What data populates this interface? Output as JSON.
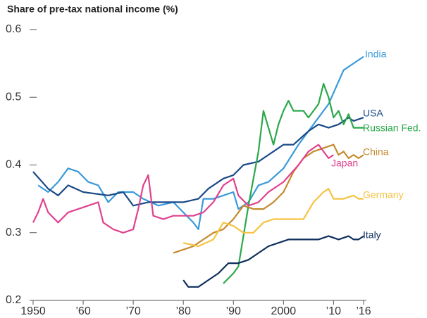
{
  "chart_data": {
    "type": "line",
    "title": "Share of pre-tax national income (%)",
    "xlim": [
      1950,
      2016
    ],
    "xticks": [
      1950,
      {
        "value": 1960,
        "label": "’60"
      },
      {
        "value": 1970,
        "label": "’70"
      },
      {
        "value": 1980,
        "label": "’80"
      },
      {
        "value": 1990,
        "label": "’90"
      },
      2000,
      {
        "value": 2010,
        "label": "’10"
      },
      {
        "value": 2016,
        "label": "’16"
      }
    ],
    "ylim": [
      0.2,
      0.6
    ],
    "yticks": [
      0.2,
      0.3,
      0.4,
      0.5,
      0.6
    ],
    "series": [
      {
        "name": "India",
        "color": "#3a9ad9",
        "x": [
          1951,
          1953,
          1955,
          1957,
          1959,
          1961,
          1963,
          1965,
          1967,
          1970,
          1972,
          1975,
          1978,
          1980,
          1982,
          1983,
          1984,
          1986,
          1988,
          1990,
          1991,
          1993,
          1995,
          1997,
          2000,
          2003,
          2006,
          2009,
          2012,
          2014,
          2016
        ],
        "values": [
          0.37,
          0.36,
          0.375,
          0.395,
          0.39,
          0.375,
          0.37,
          0.345,
          0.36,
          0.36,
          0.35,
          0.34,
          0.345,
          0.33,
          0.315,
          0.305,
          0.35,
          0.35,
          0.355,
          0.36,
          0.335,
          0.345,
          0.37,
          0.375,
          0.395,
          0.43,
          0.46,
          0.49,
          0.54,
          0.55,
          0.56
        ]
      },
      {
        "name": "USA",
        "color": "#1a4a86",
        "x": [
          1950,
          1953,
          1955,
          1957,
          1960,
          1965,
          1968,
          1970,
          1973,
          1975,
          1978,
          1980,
          1983,
          1985,
          1988,
          1990,
          1992,
          1995,
          1998,
          2000,
          2002,
          2005,
          2007,
          2009,
          2011,
          2013,
          2014,
          2016
        ],
        "values": [
          0.39,
          0.365,
          0.355,
          0.37,
          0.36,
          0.355,
          0.36,
          0.34,
          0.345,
          0.345,
          0.345,
          0.345,
          0.35,
          0.365,
          0.38,
          0.385,
          0.4,
          0.405,
          0.42,
          0.43,
          0.43,
          0.45,
          0.46,
          0.455,
          0.46,
          0.47,
          0.465,
          0.47
        ]
      },
      {
        "name": "Russian Fed.",
        "color": "#2aa84a",
        "x": [
          1988,
          1990,
          1991,
          1993,
          1995,
          1996,
          1998,
          1999,
          2000,
          2001,
          2002,
          2004,
          2005,
          2007,
          2008,
          2009,
          2010,
          2011,
          2012,
          2013,
          2014,
          2016
        ],
        "values": [
          0.225,
          0.24,
          0.25,
          0.34,
          0.42,
          0.48,
          0.43,
          0.46,
          0.48,
          0.495,
          0.48,
          0.48,
          0.47,
          0.49,
          0.52,
          0.5,
          0.47,
          0.48,
          0.46,
          0.475,
          0.455,
          0.455
        ]
      },
      {
        "name": "China",
        "color": "#c48a2e",
        "x": [
          1978,
          1980,
          1982,
          1984,
          1986,
          1988,
          1990,
          1992,
          1994,
          1996,
          1998,
          2000,
          2002,
          2004,
          2006,
          2008,
          2010,
          2011,
          2012,
          2013,
          2014,
          2015,
          2016
        ],
        "values": [
          0.27,
          0.275,
          0.28,
          0.29,
          0.3,
          0.305,
          0.32,
          0.34,
          0.335,
          0.335,
          0.345,
          0.36,
          0.39,
          0.41,
          0.42,
          0.425,
          0.43,
          0.415,
          0.42,
          0.41,
          0.415,
          0.41,
          0.415
        ]
      },
      {
        "name": "Japan",
        "color": "#e0428e",
        "x": [
          1950,
          1951,
          1952,
          1953,
          1955,
          1957,
          1959,
          1961,
          1963,
          1964,
          1966,
          1968,
          1970,
          1971,
          1972,
          1973,
          1974,
          1976,
          1978,
          1980,
          1982,
          1984,
          1986,
          1988,
          1990,
          1991,
          1993,
          1995,
          1997,
          2000,
          2003,
          2005,
          2007,
          2009,
          2010
        ],
        "values": [
          0.315,
          0.33,
          0.35,
          0.33,
          0.315,
          0.33,
          0.335,
          0.34,
          0.345,
          0.315,
          0.305,
          0.3,
          0.305,
          0.335,
          0.37,
          0.385,
          0.325,
          0.32,
          0.325,
          0.325,
          0.325,
          0.33,
          0.345,
          0.37,
          0.38,
          0.355,
          0.34,
          0.345,
          0.36,
          0.375,
          0.4,
          0.42,
          0.43,
          0.41,
          0.415
        ]
      },
      {
        "name": "Germany",
        "color": "#f6c342",
        "x": [
          1980,
          1983,
          1986,
          1988,
          1990,
          1992,
          1994,
          1996,
          1998,
          2000,
          2002,
          2004,
          2006,
          2008,
          2009,
          2010,
          2012,
          2014,
          2015,
          2016
        ],
        "values": [
          0.285,
          0.28,
          0.29,
          0.315,
          0.31,
          0.3,
          0.3,
          0.315,
          0.32,
          0.32,
          0.32,
          0.32,
          0.345,
          0.36,
          0.365,
          0.35,
          0.35,
          0.355,
          0.35,
          0.35
        ]
      },
      {
        "name": "Italy",
        "color": "#0f2f5c",
        "x": [
          1980,
          1981,
          1983,
          1985,
          1987,
          1989,
          1991,
          1993,
          1995,
          1997,
          1999,
          2001,
          2003,
          2005,
          2007,
          2009,
          2011,
          2013,
          2014,
          2015,
          2016
        ],
        "values": [
          0.23,
          0.22,
          0.22,
          0.23,
          0.24,
          0.255,
          0.255,
          0.26,
          0.27,
          0.28,
          0.285,
          0.29,
          0.29,
          0.29,
          0.29,
          0.295,
          0.29,
          0.295,
          0.29,
          0.29,
          0.295
        ]
      }
    ]
  }
}
